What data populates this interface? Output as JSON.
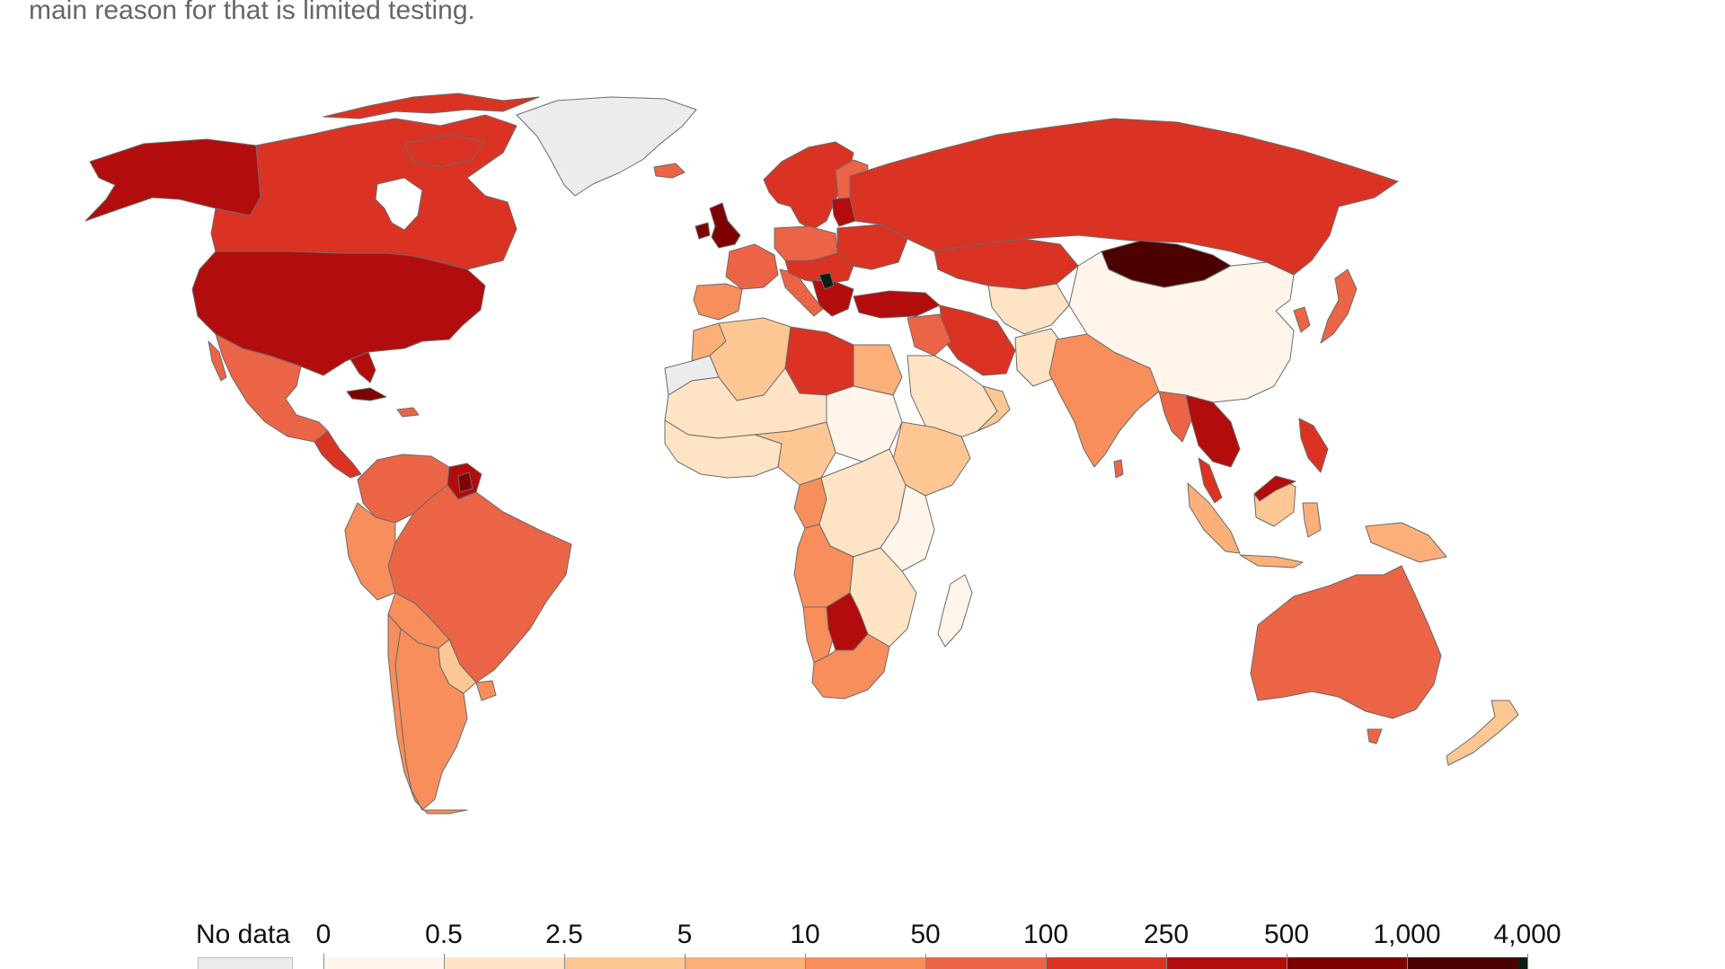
{
  "subtitle": "main reason for that is limited testing.",
  "legend": {
    "no_data_label": "No data",
    "no_data_color": "#ececec",
    "tick_labels": [
      "0",
      "0.5",
      "2.5",
      "5",
      "10",
      "50",
      "100",
      "250",
      "500",
      "1,000",
      "4,000"
    ],
    "bin_colors": [
      "#fff5eb",
      "#fee3c5",
      "#fdc793",
      "#fcaf78",
      "#f78e5c",
      "#ec6446",
      "#da3324",
      "#b30c0c",
      "#7d0303",
      "#4c0101"
    ],
    "top_color": "#0b1e12"
  },
  "map_colors": {
    "ocean": "#ffffff",
    "no_data": "#ececec",
    "border": "#6b6b6b"
  }
}
